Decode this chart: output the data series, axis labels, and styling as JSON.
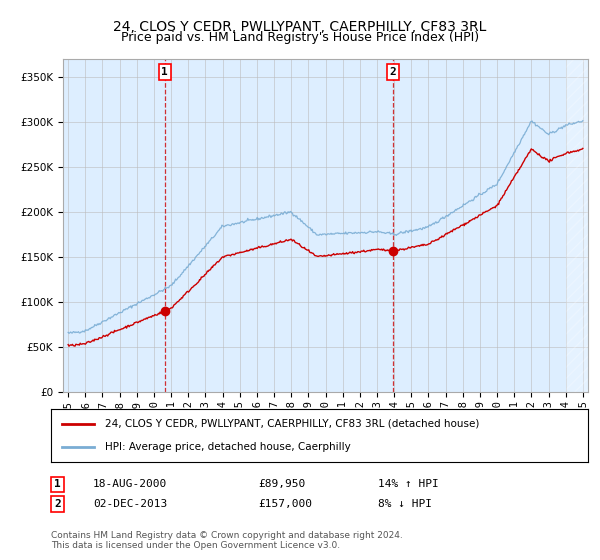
{
  "title": "24, CLOS Y CEDR, PWLLYPANT, CAERPHILLY, CF83 3RL",
  "subtitle": "Price paid vs. HM Land Registry's House Price Index (HPI)",
  "ylim": [
    0,
    370000
  ],
  "yticks": [
    0,
    50000,
    100000,
    150000,
    200000,
    250000,
    300000,
    350000
  ],
  "x_start_year": 1995,
  "x_end_year": 2025,
  "sale1_date": 2000.63,
  "sale1_price": 89950,
  "sale1_label": "1",
  "sale1_info": "18-AUG-2000",
  "sale1_amount": "£89,950",
  "sale1_hpi": "14% ↑ HPI",
  "sale2_date": 2013.92,
  "sale2_price": 157000,
  "sale2_label": "2",
  "sale2_info": "02-DEC-2013",
  "sale2_amount": "£157,000",
  "sale2_hpi": "8% ↓ HPI",
  "hpi_color": "#7aadd4",
  "price_color": "#cc0000",
  "bg_color": "#ddeeff",
  "grid_color": "#bbbbbb",
  "legend1": "24, CLOS Y CEDR, PWLLYPANT, CAERPHILLY, CF83 3RL (detached house)",
  "legend2": "HPI: Average price, detached house, Caerphilly",
  "footnote": "Contains HM Land Registry data © Crown copyright and database right 2024.\nThis data is licensed under the Open Government Licence v3.0."
}
